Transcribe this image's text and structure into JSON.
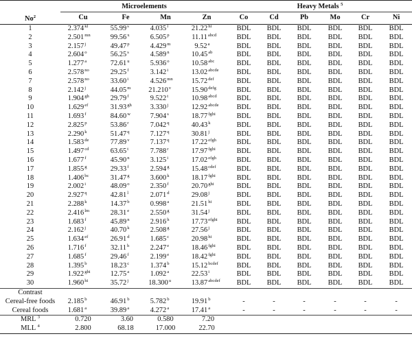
{
  "header": {
    "no_label": "No",
    "no_sup": "2",
    "micro_group": "Microelements",
    "heavy_group": "Heavy Metals",
    "heavy_sup": "5",
    "columns": [
      "Cu",
      "Fe",
      "Mn",
      "Zn",
      "Co",
      "Cd",
      "Pb",
      "Mo",
      "Cr",
      "Ni"
    ]
  },
  "rows": [
    {
      "no": "1",
      "cu": [
        "2.374",
        "kl"
      ],
      "fe": [
        "55.99",
        "s"
      ],
      "mn": [
        "4.035",
        "l"
      ],
      "zn": [
        "21.22",
        "hi"
      ]
    },
    {
      "no": "2",
      "cu": [
        "2.501",
        "mn"
      ],
      "fe": [
        "99.56",
        "x"
      ],
      "mn": [
        "6.505",
        "p"
      ],
      "zn": [
        "11.11",
        "abcd"
      ]
    },
    {
      "no": "3",
      "cu": [
        "2.157",
        "j"
      ],
      "fe": [
        "49.47",
        "p"
      ],
      "mn": [
        "4.429",
        "m"
      ],
      "zn": [
        "9.52",
        "a"
      ]
    },
    {
      "no": "4",
      "cu": [
        "2.604",
        "o"
      ],
      "fe": [
        "56.25",
        "s"
      ],
      "mn": [
        "4.589",
        "n"
      ],
      "zn": [
        "10.45",
        "ab"
      ]
    },
    {
      "no": "5",
      "cu": [
        "1.277",
        "a"
      ],
      "fe": [
        "72.61",
        "u"
      ],
      "mn": [
        "5.936",
        "o"
      ],
      "zn": [
        "10.58",
        "abc"
      ]
    },
    {
      "no": "6",
      "cu": [
        "2.578",
        "no"
      ],
      "fe": [
        "29.25",
        "f"
      ],
      "mn": [
        "3.142",
        "i"
      ],
      "zn": [
        "13.02",
        "abcde"
      ]
    },
    {
      "no": "7",
      "cu": [
        "2.578",
        "no"
      ],
      "fe": [
        "33.60",
        "i"
      ],
      "mn": [
        "4.526",
        "mn"
      ],
      "zn": [
        "15.72",
        "def"
      ]
    },
    {
      "no": "8",
      "cu": [
        "2.142",
        "j"
      ],
      "fe": [
        "44.05",
        "m"
      ],
      "mn": [
        "21.210",
        "v"
      ],
      "zn": [
        "15.90",
        "defg"
      ]
    },
    {
      "no": "9",
      "cu": [
        "1.904",
        "gh"
      ],
      "fe": [
        "29.79",
        "f"
      ],
      "mn": [
        "9.522",
        "t"
      ],
      "zn": [
        "10.98",
        "abcd"
      ]
    },
    {
      "no": "10",
      "cu": [
        "1.629",
        "ef"
      ],
      "fe": [
        "31.93",
        "gh"
      ],
      "mn": [
        "3.330",
        "j"
      ],
      "zn": [
        "12.92",
        "abcde"
      ]
    },
    {
      "no": "11",
      "cu": [
        "1.693",
        "f"
      ],
      "fe": [
        "84.60",
        "w"
      ],
      "mn": [
        "7.904",
        "s"
      ],
      "zn": [
        "18.77",
        "fghi"
      ]
    },
    {
      "no": "12",
      "cu": [
        "2.825",
        "p"
      ],
      "fe": [
        "53.86",
        "r"
      ],
      "mn": [
        "7.042",
        "q"
      ],
      "zn": [
        "40.43",
        "k"
      ]
    },
    {
      "no": "13",
      "cu": [
        "2.290",
        "k"
      ],
      "fe": [
        "51.47",
        "q"
      ],
      "mn": [
        "7.127",
        "q"
      ],
      "zn": [
        "30.81",
        "j"
      ]
    },
    {
      "no": "14",
      "cu": [
        "1.583",
        "de"
      ],
      "fe": [
        "77.89",
        "v"
      ],
      "mn": [
        "7.137",
        "q"
      ],
      "zn": [
        "17.22",
        "efgh"
      ]
    },
    {
      "no": "15",
      "cu": [
        "1.497",
        "cd"
      ],
      "fe": [
        "63.65",
        "t"
      ],
      "mn": [
        "7.788",
        "r"
      ],
      "zn": [
        "17.97",
        "fghi"
      ]
    },
    {
      "no": "16",
      "cu": [
        "1.677",
        "f"
      ],
      "fe": [
        "45.90",
        "n"
      ],
      "mn": [
        "3.125",
        "i"
      ],
      "zn": [
        "17.02",
        "efgh"
      ]
    },
    {
      "no": "17",
      "cu": [
        "1.855",
        "g"
      ],
      "fe": [
        "29.33",
        "f"
      ],
      "mn": [
        "2.594",
        "g"
      ],
      "zn": [
        "15.48",
        "cdef"
      ]
    },
    {
      "no": "18",
      "cu": [
        "1.406",
        "bc"
      ],
      "fe": [
        "31.47",
        "g"
      ],
      "mn": [
        "3.600",
        "k"
      ],
      "zn": [
        "18.17",
        "fghi"
      ]
    },
    {
      "no": "19",
      "cu": [
        "2.002",
        "i"
      ],
      "fe": [
        "48.09",
        "o"
      ],
      "mn": [
        "2.350",
        "f"
      ],
      "zn": [
        "20.70",
        "ghi"
      ]
    },
    {
      "no": "20",
      "cu": [
        "2.927",
        "q"
      ],
      "fe": [
        "42.81",
        "l"
      ],
      "mn": [
        "2.071",
        "d"
      ],
      "zn": [
        "29.08",
        "j"
      ]
    },
    {
      "no": "21",
      "cu": [
        "2.288",
        "k"
      ],
      "fe": [
        "14.37",
        "b"
      ],
      "mn": [
        "0.998",
        "a"
      ],
      "zn": [
        "21.51",
        "hi"
      ]
    },
    {
      "no": "22",
      "cu": [
        "2.416",
        "lm"
      ],
      "fe": [
        "28.31",
        "e"
      ],
      "mn": [
        "2.550",
        "g"
      ],
      "zn": [
        "31.54",
        "j"
      ]
    },
    {
      "no": "23",
      "cu": [
        "1.683",
        "f"
      ],
      "fe": [
        "45.89",
        "n"
      ],
      "mn": [
        "2.916",
        "h"
      ],
      "zn": [
        "17.73",
        "efghi"
      ]
    },
    {
      "no": "24",
      "cu": [
        "2.162",
        "j"
      ],
      "fe": [
        "40.70",
        "k"
      ],
      "mn": [
        "2.508",
        "g"
      ],
      "zn": [
        "27.56",
        "j"
      ]
    },
    {
      "no": "25",
      "cu": [
        "1.634",
        "ef"
      ],
      "fe": [
        "26.91",
        "d"
      ],
      "mn": [
        "1.685",
        "c"
      ],
      "zn": [
        "20.98",
        "hi"
      ]
    },
    {
      "no": "26",
      "cu": [
        "1.716",
        "f"
      ],
      "fe": [
        "32.11",
        "h"
      ],
      "mn": [
        "2.247",
        "e"
      ],
      "zn": [
        "18.46",
        "fghi"
      ]
    },
    {
      "no": "27",
      "cu": [
        "1.685",
        "f"
      ],
      "fe": [
        "29.46",
        "f"
      ],
      "mn": [
        "2.199",
        "e"
      ],
      "zn": [
        "18.42",
        "fghi"
      ]
    },
    {
      "no": "28",
      "cu": [
        "1.395",
        "b"
      ],
      "fe": [
        "18.23",
        "c"
      ],
      "mn": [
        "1.374",
        "b"
      ],
      "zn": [
        "15.12",
        "bcdef"
      ]
    },
    {
      "no": "29",
      "cu": [
        "1.922",
        "ghi"
      ],
      "fe": [
        "12.75",
        "a"
      ],
      "mn": [
        "1.092",
        "a"
      ],
      "zn": [
        "22.53",
        "i"
      ]
    },
    {
      "no": "30",
      "cu": [
        "1.960",
        "hi"
      ],
      "fe": [
        "35.72",
        "j"
      ],
      "mn": [
        "18.300",
        "u"
      ],
      "zn": [
        "13.87",
        "abcdef"
      ]
    }
  ],
  "heavy_value": "BDL",
  "contrast": {
    "title": "Contrast",
    "dash": "-",
    "rows": [
      {
        "label": "Cereal-free foods",
        "cu": [
          "2.185",
          "b"
        ],
        "fe": [
          "46.91",
          "b"
        ],
        "mn": [
          "5.782",
          "b"
        ],
        "zn": [
          "19.91",
          "b"
        ]
      },
      {
        "label": "Cereal foods",
        "cu": [
          "1.681",
          "a"
        ],
        "fe": [
          "39.89",
          "a"
        ],
        "mn": [
          "4.272",
          "a"
        ],
        "zn": [
          "17.41",
          "a"
        ]
      }
    ]
  },
  "limits": [
    {
      "label": "MRL",
      "sup": "3",
      "cu": "0.720",
      "fe": "3.60",
      "mn": "0.580",
      "zn": "7.20"
    },
    {
      "label": "MLL",
      "sup": "4",
      "cu": "2.800",
      "fe": "68.18",
      "mn": "17.000",
      "zn": "22.70"
    }
  ]
}
